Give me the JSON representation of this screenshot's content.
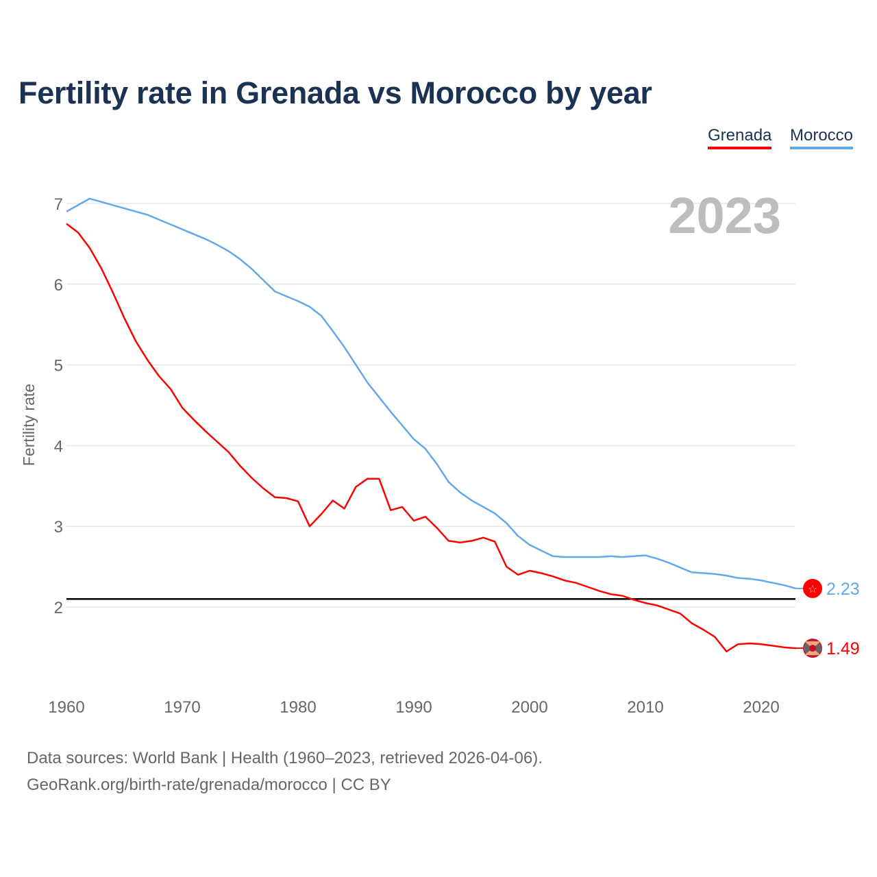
{
  "title": "Fertility rate in Grenada vs Morocco by year",
  "source_line1": "Data sources: World Bank | Health (1960–2023, retrieved 2026-04-06).",
  "source_line2": "GeoRank.org/birth-rate/grenada/morocco | CC BY",
  "chart_data": {
    "type": "line",
    "title": "Fertility rate in Grenada vs Morocco by year",
    "xlabel": "",
    "ylabel": "Fertility rate",
    "year_label": "2023",
    "xlim": [
      1960,
      2023
    ],
    "ylim": [
      1,
      7.1
    ],
    "xticks": [
      "1960",
      "1970",
      "1980",
      "1990",
      "2000",
      "2010",
      "2020"
    ],
    "yticks": [
      "2",
      "3",
      "4",
      "5",
      "6",
      "7"
    ],
    "grid": true,
    "legend_position": "top-right",
    "reference_line": {
      "value": 2.1,
      "color": "#000000"
    },
    "x": [
      1960,
      1961,
      1962,
      1963,
      1964,
      1965,
      1966,
      1967,
      1968,
      1969,
      1970,
      1971,
      1972,
      1973,
      1974,
      1975,
      1976,
      1977,
      1978,
      1979,
      1980,
      1981,
      1982,
      1983,
      1984,
      1985,
      1986,
      1987,
      1988,
      1989,
      1990,
      1991,
      1992,
      1993,
      1994,
      1995,
      1996,
      1997,
      1998,
      1999,
      2000,
      2001,
      2002,
      2003,
      2004,
      2005,
      2006,
      2007,
      2008,
      2009,
      2010,
      2011,
      2012,
      2013,
      2014,
      2015,
      2016,
      2017,
      2018,
      2019,
      2020,
      2021,
      2022,
      2023
    ],
    "series": [
      {
        "name": "Grenada",
        "color": "#ff0000",
        "end_label": "1.49",
        "values": [
          6.75,
          6.64,
          6.45,
          6.2,
          5.9,
          5.58,
          5.29,
          5.06,
          4.86,
          4.7,
          4.47,
          4.32,
          4.18,
          4.05,
          3.92,
          3.75,
          3.6,
          3.47,
          3.36,
          3.35,
          3.31,
          3.0,
          3.15,
          3.32,
          3.22,
          3.49,
          3.59,
          3.59,
          3.2,
          3.24,
          3.07,
          3.12,
          2.98,
          2.82,
          2.8,
          2.82,
          2.86,
          2.81,
          2.5,
          2.4,
          2.45,
          2.42,
          2.38,
          2.33,
          2.3,
          2.25,
          2.2,
          2.16,
          2.14,
          2.09,
          2.05,
          2.02,
          1.97,
          1.92,
          1.8,
          1.72,
          1.63,
          1.45,
          1.54,
          1.55,
          1.54,
          1.52,
          1.5,
          1.49
        ]
      },
      {
        "name": "Morocco",
        "color": "#62a8ea",
        "end_label": "2.23",
        "values": [
          6.9,
          6.98,
          7.06,
          7.02,
          6.98,
          6.94,
          6.9,
          6.86,
          6.8,
          6.74,
          6.68,
          6.62,
          6.56,
          6.49,
          6.41,
          6.31,
          6.19,
          6.05,
          5.91,
          5.85,
          5.79,
          5.72,
          5.61,
          5.42,
          5.22,
          5.0,
          4.78,
          4.6,
          4.42,
          4.25,
          4.08,
          3.96,
          3.77,
          3.55,
          3.42,
          3.32,
          3.24,
          3.16,
          3.04,
          2.88,
          2.77,
          2.7,
          2.63,
          2.62,
          2.62,
          2.62,
          2.62,
          2.63,
          2.62,
          2.63,
          2.64,
          2.6,
          2.55,
          2.49,
          2.43,
          2.42,
          2.41,
          2.39,
          2.36,
          2.35,
          2.33,
          2.3,
          2.27,
          2.23
        ]
      }
    ]
  }
}
